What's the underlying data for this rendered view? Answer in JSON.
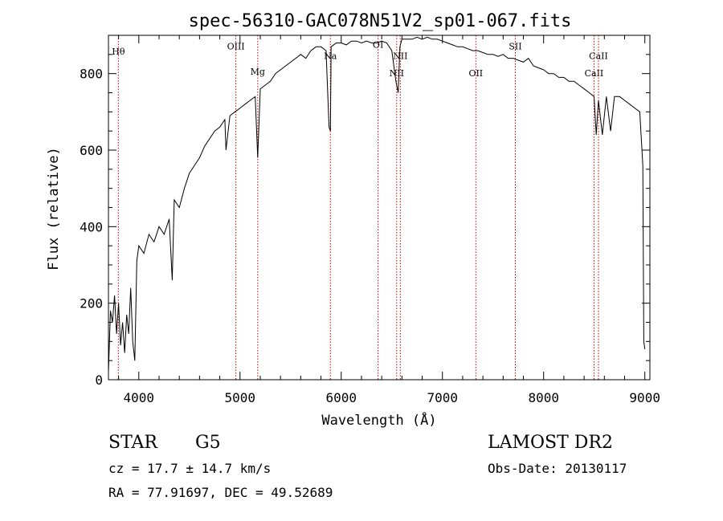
{
  "chart_data": {
    "type": "line",
    "title": "spec-56310-GAC078N51V2_sp01-067.fits",
    "xlabel": "Wavelength (Å)",
    "ylabel": "Flux (relative)",
    "xlim": [
      3700,
      9050
    ],
    "ylim": [
      0,
      900
    ],
    "xticks": [
      4000,
      5000,
      6000,
      7000,
      8000,
      9000
    ],
    "yticks": [
      0,
      200,
      400,
      600,
      800
    ],
    "grid": false,
    "series": [
      {
        "x": [
          3700,
          3720,
          3740,
          3760,
          3780,
          3800,
          3820,
          3840,
          3860,
          3880,
          3900,
          3920,
          3940,
          3960,
          3980,
          4000,
          4050,
          4100,
          4150,
          4200,
          4250,
          4300,
          4330,
          4350,
          4400,
          4450,
          4500,
          4550,
          4600,
          4650,
          4700,
          4750,
          4800,
          4850,
          4861,
          4900,
          4950,
          5000,
          5050,
          5100,
          5150,
          5175,
          5200,
          5250,
          5300,
          5350,
          5400,
          5450,
          5500,
          5550,
          5600,
          5650,
          5700,
          5750,
          5800,
          5850,
          5880,
          5893,
          5900,
          5950,
          6000,
          6050,
          6100,
          6150,
          6200,
          6250,
          6300,
          6350,
          6400,
          6450,
          6500,
          6540,
          6563,
          6580,
          6600,
          6650,
          6700,
          6750,
          6800,
          6850,
          6900,
          6950,
          7000,
          7050,
          7100,
          7150,
          7200,
          7250,
          7300,
          7350,
          7400,
          7450,
          7500,
          7550,
          7600,
          7650,
          7700,
          7750,
          7800,
          7850,
          7900,
          7950,
          8000,
          8050,
          8100,
          8150,
          8200,
          8250,
          8300,
          8350,
          8400,
          8450,
          8498,
          8520,
          8542,
          8580,
          8620,
          8662,
          8700,
          8750,
          8800,
          8850,
          8900,
          8950,
          8980,
          8990,
          9000
        ],
        "y": [
          20,
          180,
          150,
          220,
          120,
          200,
          90,
          150,
          70,
          170,
          120,
          240,
          100,
          50,
          310,
          350,
          330,
          380,
          360,
          400,
          380,
          420,
          260,
          470,
          450,
          500,
          540,
          560,
          580,
          610,
          630,
          650,
          660,
          680,
          600,
          690,
          700,
          710,
          720,
          730,
          740,
          580,
          760,
          770,
          780,
          800,
          810,
          820,
          830,
          840,
          850,
          840,
          860,
          870,
          870,
          860,
          660,
          650,
          870,
          880,
          880,
          875,
          885,
          885,
          880,
          885,
          880,
          880,
          885,
          880,
          860,
          780,
          750,
          870,
          890,
          890,
          890,
          895,
          890,
          895,
          890,
          890,
          885,
          880,
          875,
          870,
          870,
          865,
          860,
          860,
          855,
          850,
          850,
          845,
          850,
          840,
          840,
          835,
          830,
          840,
          820,
          815,
          810,
          800,
          800,
          790,
          790,
          780,
          780,
          770,
          760,
          750,
          740,
          640,
          730,
          640,
          740,
          650,
          740,
          740,
          730,
          720,
          710,
          700,
          560,
          100,
          80
        ]
      }
    ],
    "lines": [
      {
        "label": "Hθ",
        "x": 3798,
        "label_y": 850
      },
      {
        "label": "OIII",
        "x": 4959,
        "label_y": 863
      },
      {
        "label": "Mg",
        "x": 5175,
        "label_y": 797
      },
      {
        "label": "Na",
        "x": 5893,
        "label_y": 838
      },
      {
        "label": "OI",
        "x": 6364,
        "label_y": 868
      },
      {
        "label": "NII",
        "x": 6548,
        "label_y": 793
      },
      {
        "label": "NII",
        "x": 6584,
        "label_y": 838
      },
      {
        "label": "OII",
        "x": 7330,
        "label_y": 793
      },
      {
        "label": "SII",
        "x": 7720,
        "label_y": 863
      },
      {
        "label": "CaII",
        "x": 8498,
        "label_y": 793
      },
      {
        "label": "CaII",
        "x": 8542,
        "label_y": 838
      }
    ]
  },
  "info": {
    "object_class": "STAR",
    "subclass": "G5",
    "survey": "LAMOST DR2",
    "redshift": "cz = 17.7 ± 14.7 km/s",
    "obs_date": "Obs-Date: 20130117",
    "coords": "RA =  77.91697, DEC =  49.52689"
  },
  "colors": {
    "spectrum": "#000000",
    "line_marker": "#cc0000",
    "axis": "#000000",
    "background": "#ffffff"
  }
}
